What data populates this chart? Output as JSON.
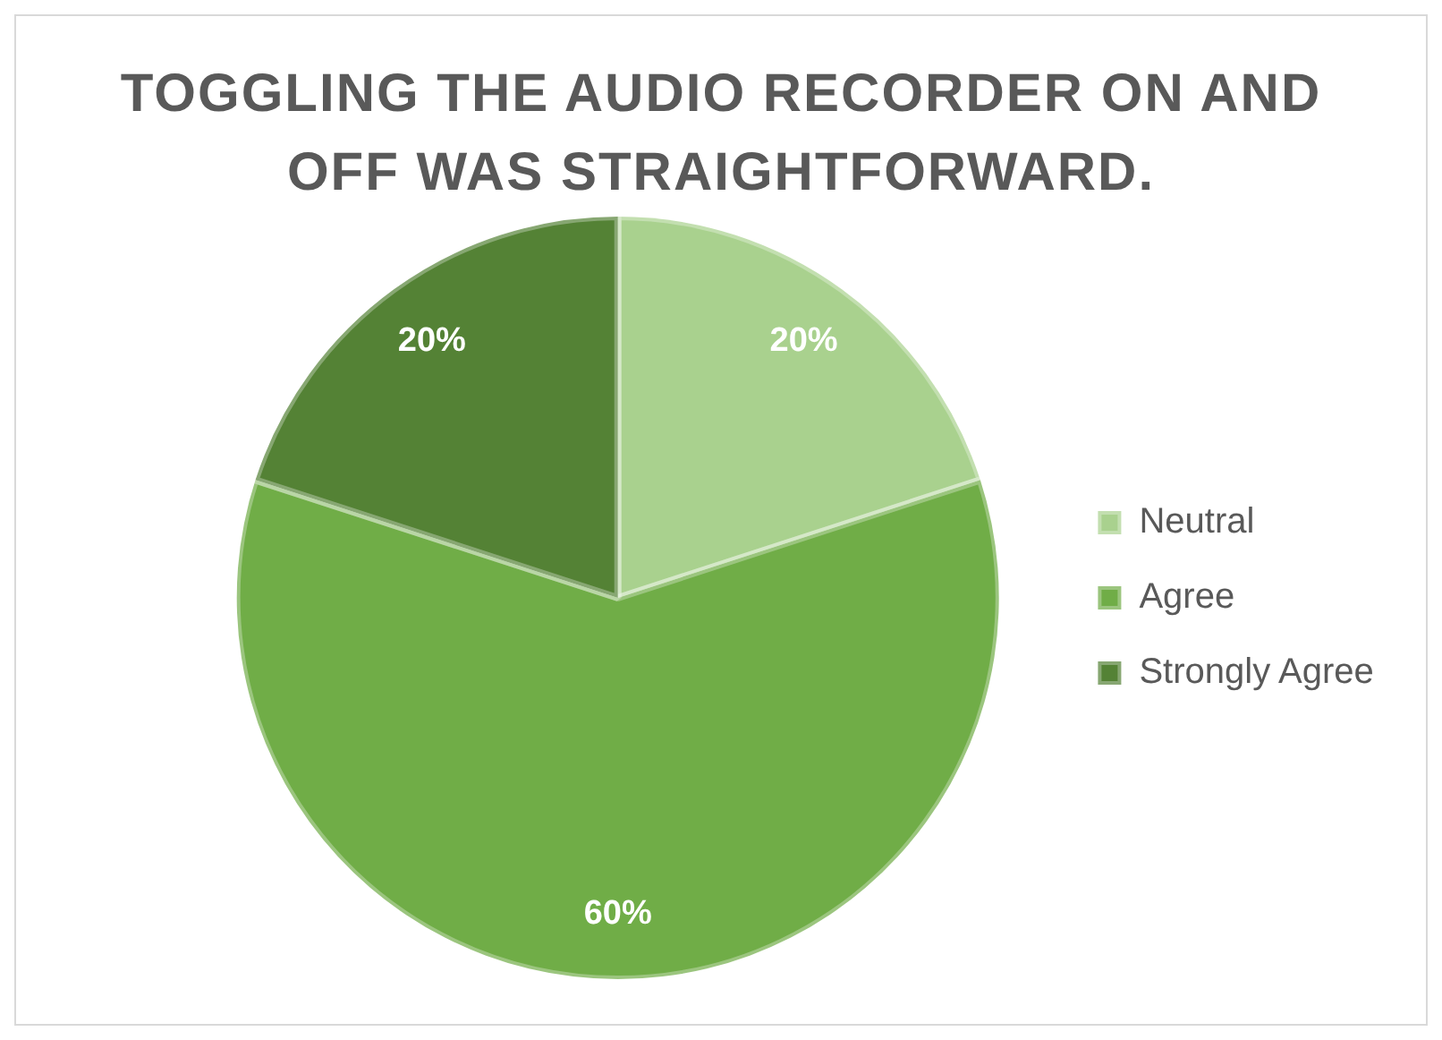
{
  "chart_data": {
    "type": "pie",
    "title": "TOGGLING THE AUDIO RECORDER ON AND OFF WAS STRAIGHTFORWARD.",
    "categories": [
      "Neutral",
      "Agree",
      "Strongly Agree"
    ],
    "values": [
      20,
      60,
      20
    ],
    "value_labels": [
      "20%",
      "60%",
      "20%"
    ],
    "colors": [
      "#a9d18e",
      "#70ad47",
      "#548235"
    ],
    "legend": "right"
  }
}
